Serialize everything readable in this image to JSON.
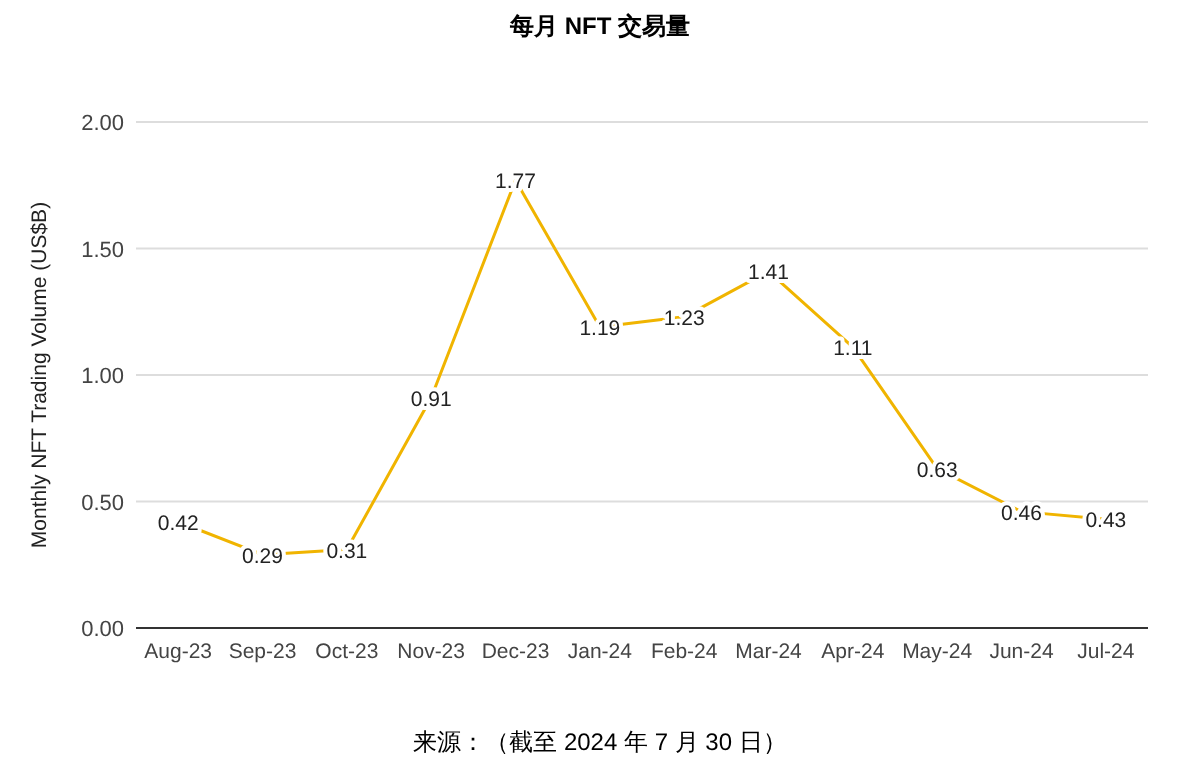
{
  "chart_data": {
    "type": "line",
    "title": "每月 NFT 交易量",
    "ylabel": "Monthly NFT Trading Volume (US$B)",
    "categories": [
      "Aug-23",
      "Sep-23",
      "Oct-23",
      "Nov-23",
      "Dec-23",
      "Jan-24",
      "Feb-24",
      "Mar-24",
      "Apr-24",
      "May-24",
      "Jun-24",
      "Jul-24"
    ],
    "series": [
      {
        "color": "#f0b400",
        "values": [
          0.42,
          0.29,
          0.31,
          0.91,
          1.77,
          1.19,
          1.23,
          1.41,
          1.11,
          0.63,
          0.46,
          0.43
        ]
      }
    ],
    "ylim": [
      0,
      2
    ],
    "yticks": [
      {
        "value": 0,
        "label": "0.00"
      },
      {
        "value": 0.5,
        "label": "0.50"
      },
      {
        "value": 1,
        "label": "1.00"
      },
      {
        "value": 1.5,
        "label": "1.50"
      },
      {
        "value": 2,
        "label": "2.00"
      }
    ],
    "grid": "y",
    "data_labels": true,
    "marker": "none",
    "line_style": "solid",
    "annotations": [
      "来源：（截至 2024 年 7 月 30 日）"
    ]
  }
}
